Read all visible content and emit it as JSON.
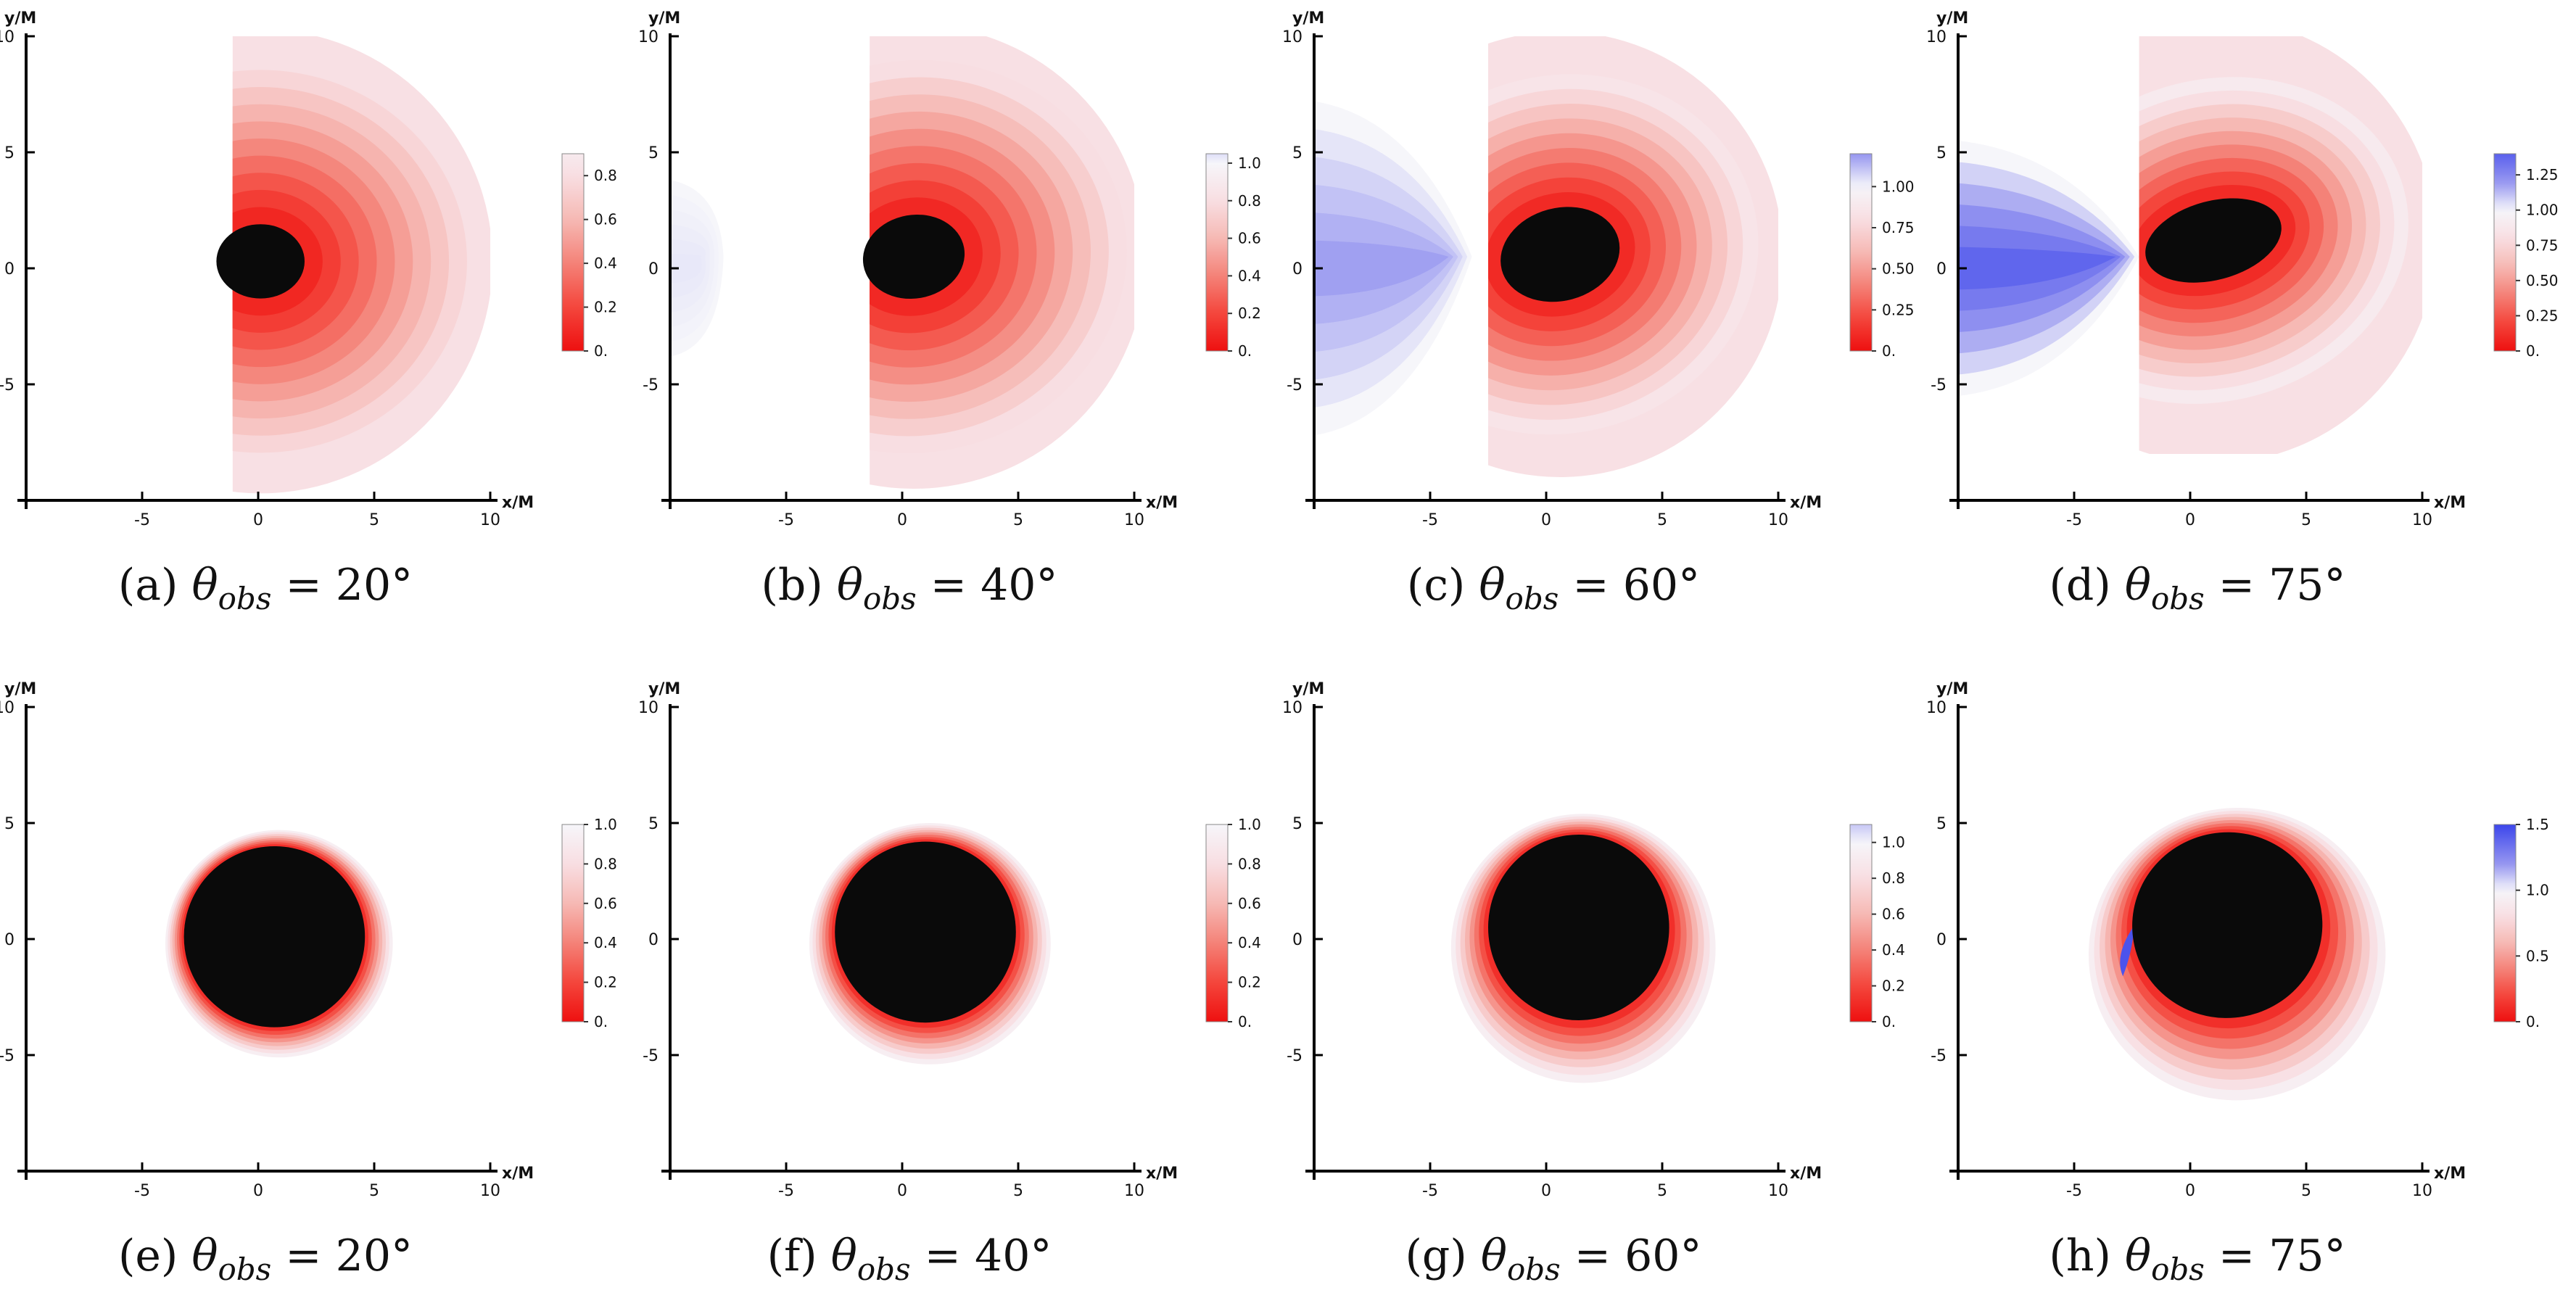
{
  "chart_data": [
    {
      "id": "a",
      "type": "heatmap",
      "caption_label": "(a)",
      "theta_obs_deg": 20,
      "xlabel": "x/M",
      "ylabel": "y/M",
      "xlim": [
        -10,
        10
      ],
      "ylim": [
        -10,
        10
      ],
      "xticks": [
        -5,
        0,
        5,
        10
      ],
      "yticks": [
        10,
        5,
        0,
        -5
      ],
      "colorbar": {
        "min": 0,
        "max": 0.9,
        "ticks": [
          "0.",
          "0.2",
          "0.4",
          "0.6",
          "0.8"
        ],
        "tick_values": [
          0,
          0.2,
          0.4,
          0.6,
          0.8
        ]
      },
      "shadow": {
        "cx": 0.1,
        "cy": 0.3,
        "rx": 1.9,
        "ry": 1.6,
        "rot": 0
      },
      "glow": {
        "width": 7,
        "peak": 0.75,
        "type": "bands"
      },
      "region": {
        "x0": -1.1,
        "x1": 10,
        "y0": -10,
        "y1": 10,
        "clipR": 10,
        "cx": 0.1,
        "cy": 0.3
      },
      "lobe": null
    },
    {
      "id": "b",
      "type": "heatmap",
      "caption_label": "(b)",
      "theta_obs_deg": 40,
      "xlabel": "x/M",
      "ylabel": "y/M",
      "xlim": [
        -10,
        10
      ],
      "ylim": [
        -10,
        10
      ],
      "xticks": [
        -5,
        0,
        5,
        10
      ],
      "yticks": [
        10,
        5,
        0,
        -5
      ],
      "colorbar": {
        "min": 0,
        "max": 1.05,
        "ticks": [
          "0.",
          "0.2",
          "0.4",
          "0.6",
          "0.8",
          "1.0"
        ],
        "tick_values": [
          0,
          0.2,
          0.4,
          0.6,
          0.8,
          1.0
        ]
      },
      "shadow": {
        "cx": 0.5,
        "cy": 0.5,
        "rx": 2.2,
        "ry": 1.8,
        "rot": -10
      },
      "glow": {
        "width": 7,
        "peak": 0.8,
        "type": "bands"
      },
      "region": {
        "x0": -1.4,
        "x1": 10,
        "y0": -10,
        "y1": 10,
        "clipR": 10,
        "cx": 0.5,
        "cy": 0.5
      },
      "lobe": {
        "tip_x": -7.7,
        "half_height": 3.8,
        "value": 1.03
      }
    },
    {
      "id": "c",
      "type": "heatmap",
      "caption_label": "(c)",
      "theta_obs_deg": 60,
      "xlabel": "x/M",
      "ylabel": "y/M",
      "xlim": [
        -10,
        10
      ],
      "ylim": [
        -10,
        10
      ],
      "xticks": [
        -5,
        0,
        5,
        10
      ],
      "yticks": [
        10,
        5,
        0,
        -5
      ],
      "colorbar": {
        "min": 0,
        "max": 1.2,
        "ticks": [
          "0.",
          "0.25",
          "0.50",
          "0.75",
          "1.00"
        ],
        "tick_values": [
          0,
          0.25,
          0.5,
          0.75,
          1.0
        ]
      },
      "shadow": {
        "cx": 0.6,
        "cy": 0.6,
        "rx": 2.6,
        "ry": 2.0,
        "rot": -15
      },
      "glow": {
        "width": 6,
        "peak": 0.85,
        "type": "bands"
      },
      "region": {
        "x0": -2.5,
        "x1": 10,
        "y0": -9,
        "y1": 10,
        "clipR": 9.6,
        "cx": 0.6,
        "cy": 0.6
      },
      "lobe": {
        "tip_x": -3.2,
        "half_height": 7.2,
        "value": 1.18
      }
    },
    {
      "id": "d",
      "type": "heatmap",
      "caption_label": "(d)",
      "theta_obs_deg": 75,
      "xlabel": "x/M",
      "ylabel": "y/M",
      "xlim": [
        -10,
        10
      ],
      "ylim": [
        -10,
        10
      ],
      "xticks": [
        -5,
        0,
        5,
        10
      ],
      "yticks": [
        10,
        5,
        0,
        -5
      ],
      "colorbar": {
        "min": 0,
        "max": 1.4,
        "ticks": [
          "0.",
          "0.25",
          "0.50",
          "0.75",
          "1.00",
          "1.25"
        ],
        "tick_values": [
          0,
          0.25,
          0.5,
          0.75,
          1.0,
          1.25
        ]
      },
      "shadow": {
        "cx": 1.0,
        "cy": 1.2,
        "rx": 3.0,
        "ry": 1.7,
        "rot": -15
      },
      "glow": {
        "width": 5.5,
        "peak": 0.9,
        "type": "bands"
      },
      "region": {
        "x0": -2.2,
        "x1": 10,
        "y0": -8,
        "y1": 10,
        "clipR": 9.6,
        "cx": 1.0,
        "cy": 1.2
      },
      "lobe": {
        "tip_x": -2.2,
        "half_height": 5.5,
        "value": 1.38
      }
    },
    {
      "id": "e",
      "type": "heatmap",
      "caption_label": "(e)",
      "theta_obs_deg": 20,
      "xlabel": "x/M",
      "ylabel": "y/M",
      "xlim": [
        -10,
        10
      ],
      "ylim": [
        -10,
        10
      ],
      "xticks": [
        -5,
        0,
        5,
        10
      ],
      "yticks": [
        10,
        5,
        0,
        -5
      ],
      "colorbar": {
        "min": 0,
        "max": 1.0,
        "ticks": [
          "0.",
          "0.2",
          "0.4",
          "0.6",
          "0.8",
          "1.0"
        ],
        "tick_values": [
          0,
          0.2,
          0.4,
          0.6,
          0.8,
          1.0
        ]
      },
      "shadow": {
        "cx": 0.7,
        "cy": 0.1,
        "rx": 3.9,
        "ry": 3.9,
        "rot": 0
      },
      "glow": {
        "width": 1.0,
        "peak": 0.98,
        "type": "thin",
        "shiftY": -0.3
      },
      "region": null,
      "lobe": null
    },
    {
      "id": "f",
      "type": "heatmap",
      "caption_label": "(f)",
      "theta_obs_deg": 40,
      "xlabel": "x/M",
      "ylabel": "y/M",
      "xlim": [
        -10,
        10
      ],
      "ylim": [
        -10,
        10
      ],
      "xticks": [
        -5,
        0,
        5,
        10
      ],
      "yticks": [
        10,
        5,
        0,
        -5
      ],
      "colorbar": {
        "min": 0,
        "max": 1.0,
        "ticks": [
          "0.",
          "0.2",
          "0.4",
          "0.6",
          "0.8",
          "1.0"
        ],
        "tick_values": [
          0,
          0.2,
          0.4,
          0.6,
          0.8,
          1.0
        ]
      },
      "shadow": {
        "cx": 1.0,
        "cy": 0.3,
        "rx": 3.9,
        "ry": 3.9,
        "rot": 0
      },
      "glow": {
        "width": 1.3,
        "peak": 0.98,
        "type": "thin",
        "shiftY": -0.5
      },
      "region": null,
      "lobe": null
    },
    {
      "id": "g",
      "type": "heatmap",
      "caption_label": "(g)",
      "theta_obs_deg": 60,
      "xlabel": "x/M",
      "ylabel": "y/M",
      "xlim": [
        -10,
        10
      ],
      "ylim": [
        -10,
        10
      ],
      "xticks": [
        -5,
        0,
        5,
        10
      ],
      "yticks": [
        10,
        5,
        0,
        -5
      ],
      "colorbar": {
        "min": 0,
        "max": 1.1,
        "ticks": [
          "0.",
          "0.2",
          "0.4",
          "0.6",
          "0.8",
          "1.0"
        ],
        "tick_values": [
          0,
          0.2,
          0.4,
          0.6,
          0.8,
          1.0
        ]
      },
      "shadow": {
        "cx": 1.4,
        "cy": 0.5,
        "rx": 3.9,
        "ry": 4.0,
        "rot": 0
      },
      "glow": {
        "width": 1.8,
        "peak": 0.98,
        "type": "thin",
        "shiftY": -0.9
      },
      "region": null,
      "lobe": null
    },
    {
      "id": "h",
      "type": "heatmap",
      "caption_label": "(h)",
      "theta_obs_deg": 75,
      "xlabel": "x/M",
      "ylabel": "y/M",
      "xlim": [
        -10,
        10
      ],
      "ylim": [
        -10,
        10
      ],
      "xticks": [
        -5,
        0,
        5,
        10
      ],
      "yticks": [
        10,
        5,
        0,
        -5
      ],
      "colorbar": {
        "min": 0,
        "max": 1.5,
        "ticks": [
          "0.",
          "0.5",
          "1.0",
          "1.5"
        ],
        "tick_values": [
          0,
          0.5,
          1.0,
          1.5
        ]
      },
      "shadow": {
        "cx": 1.6,
        "cy": 0.6,
        "rx": 4.1,
        "ry": 4.0,
        "rot": -10
      },
      "glow": {
        "width": 2.3,
        "peak": 0.98,
        "type": "thin",
        "shiftY": -1.3
      },
      "region": null,
      "lobe": {
        "tip_x": -2.4,
        "half_height": 1.4,
        "value": 1.45,
        "small": true
      }
    }
  ]
}
